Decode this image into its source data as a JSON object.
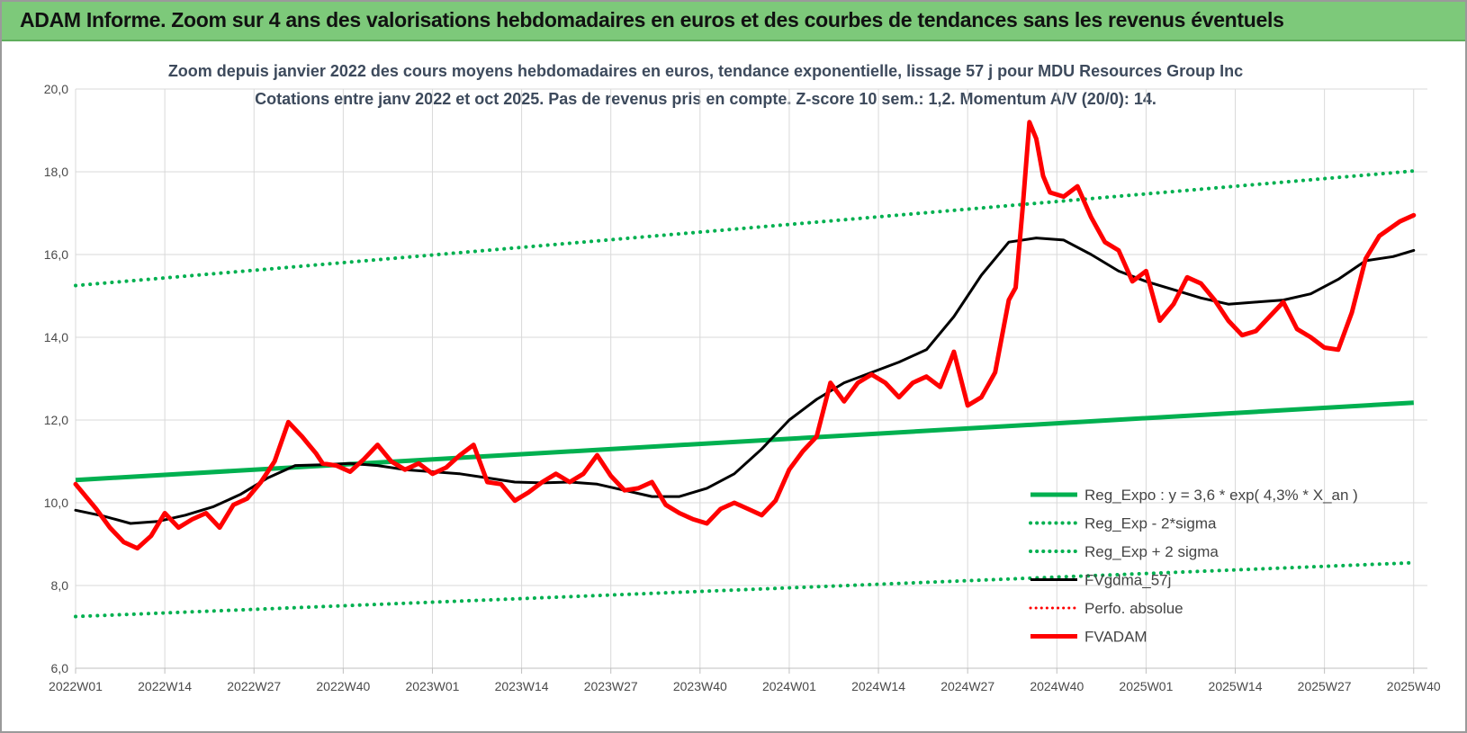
{
  "banner": {
    "title": "ADAM Informe. Zoom sur 4 ans des valorisations hebdomadaires en euros et des courbes de tendances sans les revenus éventuels"
  },
  "chart_data": {
    "type": "line",
    "title": "Zoom depuis janvier 2022 des cours moyens hebdomadaires en euros, tendance exponentielle, lissage 57 j pour MDU Resources Group Inc",
    "subtitle": "Cotations entre janv 2022 et oct 2025. Pas de revenus pris en compte. Z-score 10 sem.: 1,2. Momentum A/V (20/0): 14.",
    "xlabel": "",
    "ylabel": "",
    "ylim": [
      6,
      20
    ],
    "y_ticks": [
      "6,0",
      "8,0",
      "10,0",
      "12,0",
      "14,0",
      "16,0",
      "18,0",
      "20,0"
    ],
    "x_ticks": [
      "2022W01",
      "2022W14",
      "2022W27",
      "2022W40",
      "2023W01",
      "2023W14",
      "2023W27",
      "2023W40",
      "2024W01",
      "2024W14",
      "2024W27",
      "2024W40",
      "2025W01",
      "2025W14",
      "2025W27",
      "2025W40"
    ],
    "x_start_label": "2022W01",
    "x_end_week_index": 197,
    "grid": true,
    "legend_position": "bottom-right",
    "legend": [
      {
        "label": "Reg_Expo : y = 3,6 * exp( 4,3% *  X_an )",
        "color": "#00b050",
        "style": "solid-thick"
      },
      {
        "label": "Reg_Exp - 2*sigma",
        "color": "#00b050",
        "style": "dotted"
      },
      {
        "label": "Reg_Exp + 2 sigma",
        "color": "#00b050",
        "style": "dotted"
      },
      {
        "label": "FVgdma_57j",
        "color": "#000000",
        "style": "solid"
      },
      {
        "label": "Perfo. absolue",
        "color": "#ff0000",
        "style": "dotted"
      },
      {
        "label": "FVADAM",
        "color": "#ff0000",
        "style": "solid-thick"
      }
    ],
    "series": [
      {
        "name": "Reg_Expo : y = 3,6 * exp( 4,3% *  X_an )",
        "color": "#00b050",
        "x": [
          0,
          195
        ],
        "values": [
          10.55,
          12.42
        ]
      },
      {
        "name": "Reg_Exp - 2*sigma",
        "color": "#00b050",
        "x": [
          0,
          195
        ],
        "values": [
          7.25,
          8.55
        ]
      },
      {
        "name": "Reg_Exp + 2 sigma",
        "color": "#00b050",
        "x": [
          0,
          195
        ],
        "values": [
          15.25,
          18.02
        ]
      },
      {
        "name": "FVgdma_57j",
        "color": "#000000",
        "x": [
          0,
          4,
          8,
          12,
          16,
          20,
          24,
          28,
          32,
          36,
          40,
          44,
          48,
          52,
          56,
          60,
          64,
          68,
          72,
          76,
          80,
          84,
          88,
          92,
          96,
          100,
          104,
          108,
          112,
          116,
          120,
          124,
          128,
          132,
          136,
          140,
          144,
          148,
          152,
          156,
          160,
          164,
          168,
          172,
          176,
          180,
          184,
          188,
          192,
          195
        ],
        "values": [
          9.82,
          9.68,
          9.5,
          9.55,
          9.7,
          9.9,
          10.2,
          10.6,
          10.9,
          10.92,
          10.95,
          10.9,
          10.8,
          10.75,
          10.7,
          10.6,
          10.5,
          10.48,
          10.5,
          10.45,
          10.3,
          10.15,
          10.15,
          10.35,
          10.7,
          11.3,
          12.0,
          12.5,
          12.9,
          13.15,
          13.4,
          13.7,
          14.5,
          15.5,
          16.3,
          16.4,
          16.35,
          16.0,
          15.6,
          15.35,
          15.15,
          14.95,
          14.8,
          14.85,
          14.9,
          15.05,
          15.4,
          15.85,
          15.95,
          16.1
        ]
      },
      {
        "name": "FVADAM",
        "color": "#ff0000",
        "x": [
          0,
          3,
          5,
          7,
          9,
          11,
          13,
          15,
          17,
          19,
          21,
          23,
          25,
          27,
          29,
          31,
          33,
          34,
          35,
          36,
          38,
          40,
          42,
          44,
          46,
          48,
          50,
          52,
          54,
          56,
          58,
          60,
          62,
          64,
          66,
          68,
          70,
          72,
          74,
          76,
          78,
          80,
          82,
          84,
          86,
          88,
          90,
          92,
          94,
          96,
          98,
          100,
          102,
          104,
          106,
          108,
          110,
          112,
          114,
          116,
          118,
          120,
          122,
          124,
          126,
          128,
          130,
          132,
          134,
          136,
          137,
          138,
          139,
          140,
          141,
          142,
          144,
          146,
          148,
          150,
          152,
          154,
          156,
          158,
          160,
          162,
          164,
          166,
          168,
          170,
          172,
          174,
          176,
          178,
          180,
          182,
          184,
          186,
          188,
          190,
          193,
          195
        ],
        "values": [
          10.45,
          9.85,
          9.4,
          9.05,
          8.9,
          9.2,
          9.75,
          9.4,
          9.6,
          9.75,
          9.4,
          9.95,
          10.1,
          10.5,
          11.0,
          11.95,
          11.6,
          11.4,
          11.2,
          10.95,
          10.9,
          10.75,
          11.05,
          11.4,
          11.0,
          10.8,
          10.95,
          10.7,
          10.85,
          11.15,
          11.4,
          10.5,
          10.45,
          10.05,
          10.25,
          10.5,
          10.7,
          10.5,
          10.7,
          11.15,
          10.65,
          10.3,
          10.35,
          10.5,
          9.95,
          9.75,
          9.6,
          9.5,
          9.85,
          10.0,
          9.85,
          9.7,
          10.05,
          10.8,
          11.25,
          11.6,
          12.9,
          12.45,
          12.9,
          13.1,
          12.9,
          12.55,
          12.9,
          13.05,
          12.8,
          13.65,
          12.35,
          12.55,
          13.15,
          14.9,
          15.2,
          17.1,
          19.2,
          18.8,
          17.9,
          17.5,
          17.4,
          17.65,
          16.9,
          16.3,
          16.1,
          15.35,
          15.6,
          14.4,
          14.8,
          15.45,
          15.3,
          14.9,
          14.4,
          14.05,
          14.15,
          14.5,
          14.85,
          14.2,
          14.0,
          13.75,
          13.7,
          14.6,
          15.9,
          16.45,
          16.8,
          16.95
        ]
      }
    ]
  }
}
